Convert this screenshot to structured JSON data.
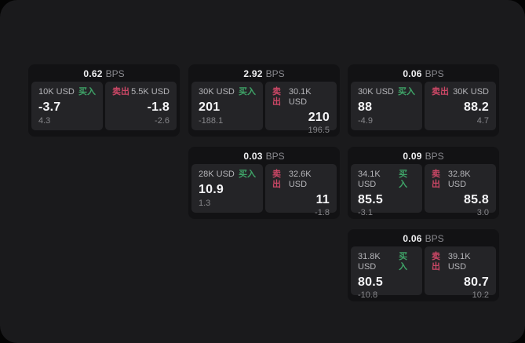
{
  "labels": {
    "bps_unit": "BPS",
    "buy": "买入",
    "sell": "卖出"
  },
  "colors": {
    "background": "#1a1a1c",
    "card": "#121214",
    "panel": "#242427",
    "buy_green": "#3fa468",
    "sell_red": "#cb4766",
    "value_white": "#f5f5f7",
    "muted_gray": "#87878b"
  },
  "cards": [
    {
      "bps": "0.62",
      "buy": {
        "amount": "10K USD",
        "price": "-3.7",
        "sub": "4.3"
      },
      "sell": {
        "amount": "5.5K USD",
        "price": "-1.8",
        "sub": "-2.6"
      }
    },
    {
      "bps": "2.92",
      "buy": {
        "amount": "30K USD",
        "price": "201",
        "sub": "-188.1"
      },
      "sell": {
        "amount": "30.1K USD",
        "price": "210",
        "sub": "196.5"
      }
    },
    {
      "bps": "0.06",
      "buy": {
        "amount": "30K USD",
        "price": "88",
        "sub": "-4.9"
      },
      "sell": {
        "amount": "30K USD",
        "price": "88.2",
        "sub": "4.7"
      }
    },
    {
      "bps": "0.03",
      "buy": {
        "amount": "28K USD",
        "price": "10.9",
        "sub": "1.3"
      },
      "sell": {
        "amount": "32.6K USD",
        "price": "11",
        "sub": "-1.8"
      }
    },
    {
      "bps": "0.09",
      "buy": {
        "amount": "34.1K USD",
        "price": "85.5",
        "sub": "-3.1"
      },
      "sell": {
        "amount": "32.8K USD",
        "price": "85.8",
        "sub": "3.0"
      }
    },
    {
      "bps": "0.06",
      "buy": {
        "amount": "31.8K USD",
        "price": "80.5",
        "sub": "-10.8"
      },
      "sell": {
        "amount": "39.1K USD",
        "price": "80.7",
        "sub": "10.2"
      }
    }
  ]
}
